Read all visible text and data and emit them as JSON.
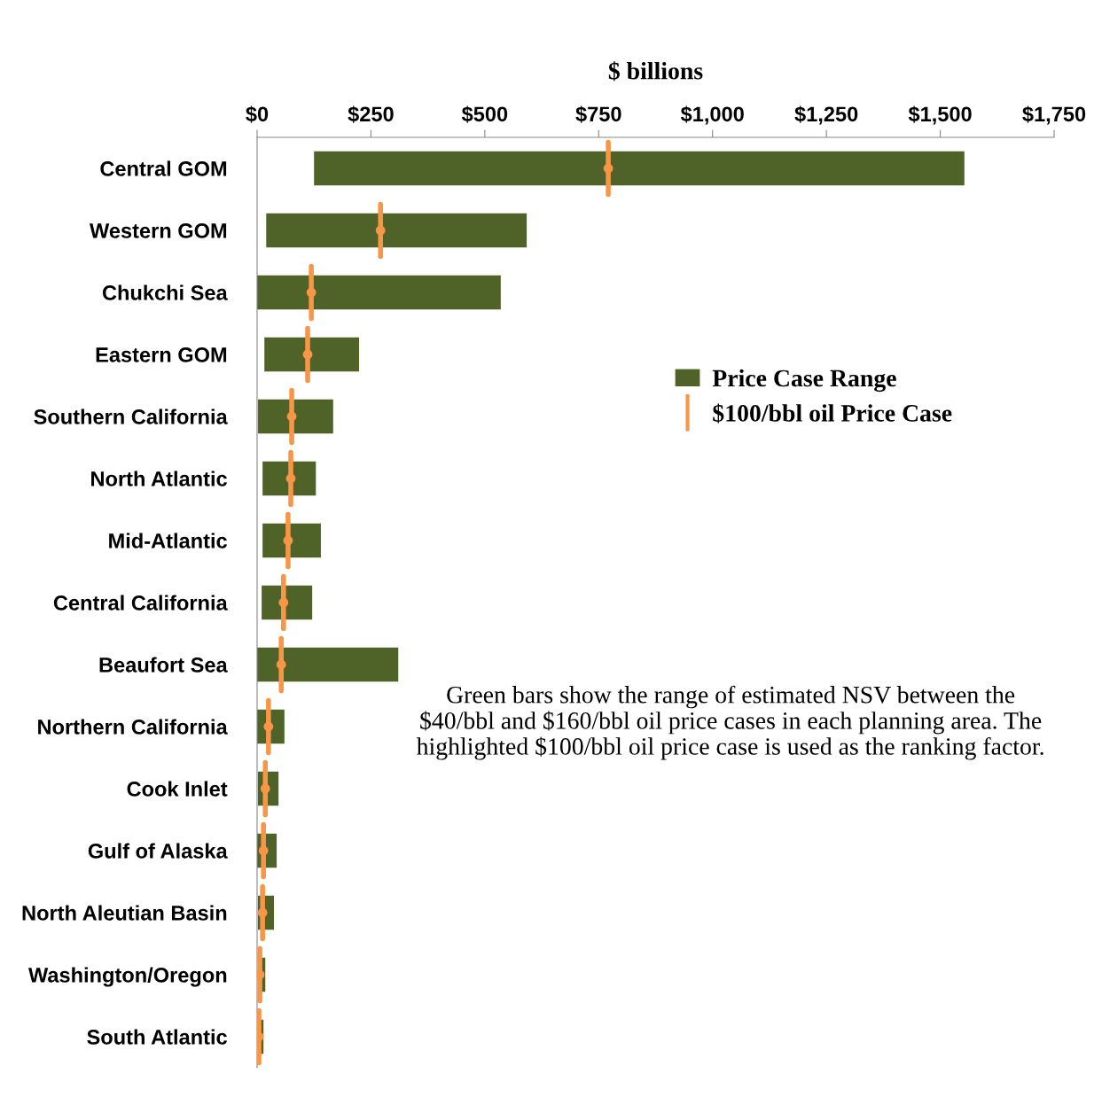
{
  "chart_data": {
    "type": "bar",
    "orientation": "horizontal",
    "xlabel": "$ billions",
    "categories": [
      "Central GOM",
      "Western GOM",
      "Chukchi Sea",
      "Eastern GOM",
      "Southern California",
      "North Atlantic",
      "Mid-Atlantic",
      "Central California",
      "Beaufort Sea",
      "Northern California",
      "Cook Inlet",
      "Gulf of Alaska",
      "North Aleutian Basin",
      "Washington/Oregon",
      "South Atlantic"
    ],
    "series": [
      {
        "name": "Price Case Range",
        "type": "bar",
        "color": "#4f6228",
        "base": [
          125,
          20,
          0,
          16,
          2,
          12,
          12,
          10,
          0,
          0,
          2,
          0,
          2,
          4,
          4
        ],
        "values": [
          1428,
          572,
          535,
          208,
          165,
          117,
          128,
          111,
          310,
          60,
          45,
          43,
          35,
          14,
          10
        ]
      },
      {
        "name": "$100/bbl oil Price Case",
        "type": "scatter",
        "color": "#f79646",
        "values": [
          771,
          271,
          119,
          111,
          76,
          74,
          68,
          58,
          53,
          25,
          18,
          14,
          12,
          6,
          4
        ]
      }
    ],
    "xlim": [
      0,
      1750
    ],
    "xticks": [
      {
        "value": 0,
        "label": "$0"
      },
      {
        "value": 250,
        "label": "$250"
      },
      {
        "value": 500,
        "label": "$500"
      },
      {
        "value": 750,
        "label": "$750"
      },
      {
        "value": 1000,
        "label": "$1,000"
      },
      {
        "value": 1250,
        "label": "$1,250"
      },
      {
        "value": 1500,
        "label": "$1,500"
      },
      {
        "value": 1750,
        "label": "$1,750"
      }
    ],
    "grid": false,
    "legend": "right",
    "annotations": [
      "Green bars show the range of estimated NSV between the $40/bbl and $160/bbl oil price cases in each planning area. The highlighted $100/bbl oil price case is used as the ranking factor."
    ]
  }
}
